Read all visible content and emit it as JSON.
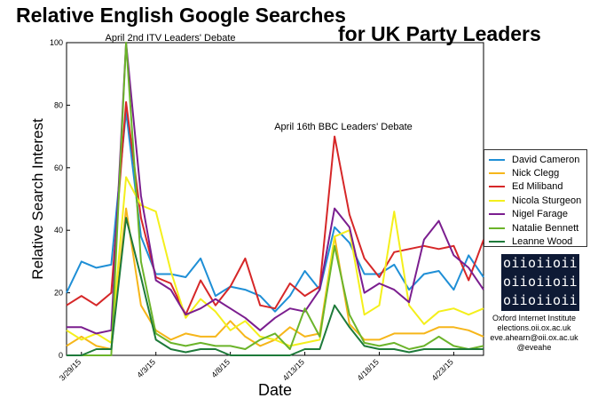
{
  "title_line1": "Relative English Google Searches",
  "title_line2": "for UK Party Leaders",
  "chart_data": {
    "type": "line",
    "title": "Relative English Google Searches for UK Party Leaders",
    "xlabel": "Date",
    "ylabel": "Relative Search Interest",
    "ylim": [
      0,
      100
    ],
    "yticks": [
      0,
      20,
      40,
      60,
      80,
      100
    ],
    "x": [
      "3/28/15",
      "3/29/15",
      "3/30/15",
      "3/31/15",
      "4/1/15",
      "4/2/15",
      "4/3/15",
      "4/4/15",
      "4/5/15",
      "4/6/15",
      "4/7/15",
      "4/8/15",
      "4/9/15",
      "4/10/15",
      "4/11/15",
      "4/12/15",
      "4/13/15",
      "4/14/15",
      "4/15/15",
      "4/16/15",
      "4/17/15",
      "4/18/15",
      "4/19/15",
      "4/20/15",
      "4/21/15",
      "4/22/15",
      "4/23/15",
      "4/24/15",
      "4/25/15"
    ],
    "xticks": [
      "3/29/15",
      "4/3/15",
      "4/8/15",
      "4/13/15",
      "4/18/15",
      "4/23/15"
    ],
    "legend_position": "right",
    "grid": false,
    "annotations": [
      {
        "text": "April 2nd ITV Leaders' Debate",
        "x": "4/2/15",
        "y": 100
      },
      {
        "text": "April 16th BBC Leaders' Debate",
        "x": "4/16/15",
        "y": 72
      }
    ],
    "series": [
      {
        "name": "David Cameron",
        "color": "#1f8fd6",
        "values": [
          20,
          30,
          28,
          29,
          78,
          38,
          26,
          26,
          25,
          31,
          19,
          22,
          21,
          19,
          14,
          19,
          27,
          21,
          41,
          36,
          26,
          26,
          29,
          21,
          26,
          27,
          21,
          32,
          25
        ]
      },
      {
        "name": "Nick Clegg",
        "color": "#f6b61a",
        "values": [
          3,
          6,
          3,
          2,
          47,
          16,
          8,
          5,
          7,
          6,
          6,
          11,
          6,
          3,
          5,
          9,
          6,
          7,
          38,
          10,
          5,
          5,
          7,
          7,
          7,
          9,
          9,
          8,
          6
        ]
      },
      {
        "name": "Ed Miliband",
        "color": "#d62728",
        "values": [
          16,
          19,
          16,
          20,
          81,
          44,
          25,
          23,
          13,
          24,
          16,
          22,
          31,
          16,
          15,
          23,
          19,
          22,
          70,
          45,
          31,
          25,
          33,
          34,
          35,
          34,
          35,
          24,
          37
        ]
      },
      {
        "name": "Nicola Sturgeon",
        "color": "#f4ef1c",
        "values": [
          8,
          5,
          7,
          4,
          57,
          48,
          46,
          27,
          12,
          18,
          14,
          8,
          11,
          6,
          5,
          3,
          4,
          5,
          38,
          40,
          13,
          16,
          46,
          16,
          10,
          14,
          15,
          13,
          15
        ]
      },
      {
        "name": "Nigel Farage",
        "color": "#7b1e8f",
        "values": [
          9,
          9,
          7,
          8,
          100,
          51,
          24,
          21,
          13,
          15,
          18,
          15,
          12,
          8,
          12,
          15,
          14,
          21,
          47,
          41,
          20,
          23,
          21,
          17,
          37,
          43,
          32,
          28,
          21
        ]
      },
      {
        "name": "Natalie Bennett",
        "color": "#6bb42a",
        "values": [
          0,
          0,
          0,
          0,
          100,
          30,
          7,
          4,
          3,
          4,
          3,
          3,
          2,
          5,
          7,
          2,
          15,
          6,
          35,
          13,
          4,
          3,
          4,
          2,
          3,
          6,
          3,
          2,
          3
        ]
      },
      {
        "name": "Leanne Wood",
        "color": "#1e7a3a",
        "values": [
          0,
          0,
          2,
          2,
          44,
          25,
          5,
          2,
          1,
          2,
          2,
          0,
          0,
          0,
          0,
          0,
          2,
          2,
          16,
          9,
          3,
          2,
          2,
          1,
          2,
          2,
          2,
          2,
          2
        ]
      }
    ]
  },
  "logo": {
    "rows": [
      "oiioiioii",
      "oiioiioii",
      "oiioiioii"
    ]
  },
  "credits": [
    "Oxford Internet Institute",
    "elections.oii.ox.ac.uk",
    "eve.ahearn@oii.ox.ac.uk",
    "@eveahe"
  ]
}
